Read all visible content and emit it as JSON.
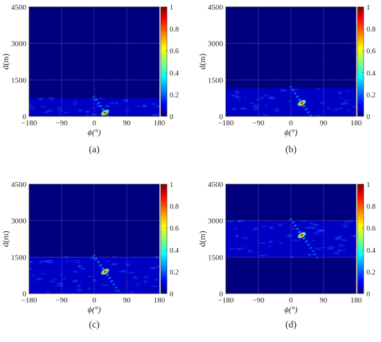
{
  "figure": {
    "panel_labels": [
      "(a)",
      "(b)",
      "(c)",
      "(d)"
    ]
  },
  "colors": {
    "background_field": "#00007f",
    "grid": "#8a8acb",
    "colormap": [
      "#00007f",
      "#0000ff",
      "#00ffff",
      "#ffff00",
      "#ff0000",
      "#7f0000"
    ]
  },
  "chart_data": [
    {
      "type": "heatmap",
      "panel": "(a)",
      "xlabel": "ϕ(°)",
      "ylabel": "d(m)",
      "xlim": [
        -180,
        180
      ],
      "ylim": [
        0,
        4500
      ],
      "x_ticks": [
        "−180",
        "−90",
        "0",
        "90",
        "180"
      ],
      "y_ticks": [
        "0",
        "1500",
        "3000",
        "4500"
      ],
      "colorbar": {
        "range": [
          0,
          1
        ],
        "ticks": [
          "0",
          "0.2",
          "0.4",
          "0.6",
          "0.8",
          "1"
        ]
      },
      "active_band_m": [
        0,
        750
      ],
      "peak": {
        "phi_deg": 30,
        "d_m": 150,
        "value": 1.0
      }
    },
    {
      "type": "heatmap",
      "panel": "(b)",
      "xlabel": "ϕ(°)",
      "ylabel": "d(m)",
      "xlim": [
        -180,
        180
      ],
      "ylim": [
        0,
        4500
      ],
      "x_ticks": [
        "−180",
        "−90",
        "0",
        "90",
        "180"
      ],
      "y_ticks": [
        "0",
        "1500",
        "3000",
        "4500"
      ],
      "colorbar": {
        "range": [
          0,
          1
        ],
        "ticks": [
          "0",
          "0.2",
          "0.4",
          "0.6",
          "0.8",
          "1"
        ]
      },
      "active_band_m": [
        0,
        1150
      ],
      "peak": {
        "phi_deg": 30,
        "d_m": 550,
        "value": 1.0
      }
    },
    {
      "type": "heatmap",
      "panel": "(c)",
      "xlabel": "ϕ(°)",
      "ylabel": "d(m)",
      "xlim": [
        -180,
        180
      ],
      "ylim": [
        0,
        4500
      ],
      "x_ticks": [
        "−180",
        "−90",
        "0",
        "90",
        "180"
      ],
      "y_ticks": [
        "0",
        "1500",
        "3000",
        "4500"
      ],
      "colorbar": {
        "range": [
          0,
          1
        ],
        "ticks": [
          "0",
          "0.2",
          "0.4",
          "0.6",
          "0.8",
          "1"
        ]
      },
      "active_band_m": [
        0,
        1500
      ],
      "peak": {
        "phi_deg": 30,
        "d_m": 900,
        "value": 1.0
      }
    },
    {
      "type": "heatmap",
      "panel": "(d)",
      "xlabel": "ϕ(°)",
      "ylabel": "d(m)",
      "xlim": [
        -180,
        180
      ],
      "ylim": [
        0,
        4500
      ],
      "x_ticks": [
        "−180",
        "−90",
        "0",
        "90",
        "180"
      ],
      "y_ticks": [
        "0",
        "1500",
        "3000",
        "4500"
      ],
      "colorbar": {
        "range": [
          0,
          1
        ],
        "ticks": [
          "0",
          "0.2",
          "0.4",
          "0.6",
          "0.8",
          "1"
        ]
      },
      "active_band_m": [
        1500,
        3000
      ],
      "peak": {
        "phi_deg": 30,
        "d_m": 2400,
        "value": 1.0
      }
    }
  ]
}
